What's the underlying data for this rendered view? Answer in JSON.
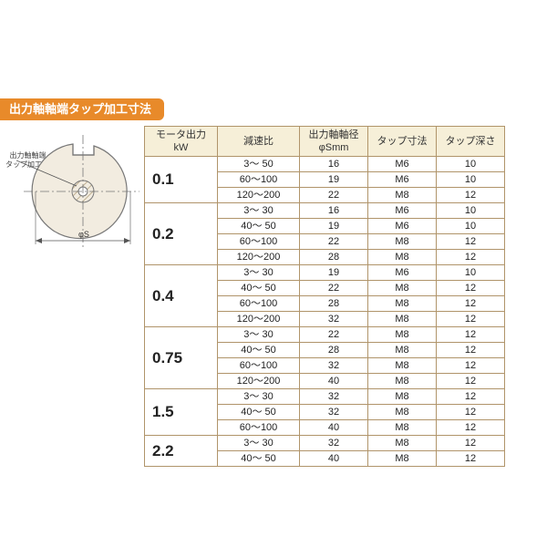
{
  "title": "出力軸軸端タップ加工寸法",
  "diagram": {
    "label_lines": [
      "出力軸軸端",
      "タップ加工"
    ],
    "phi_label": "φS",
    "stroke": "#777777",
    "fill": "#f2ece0",
    "hatch": "#bfaf90"
  },
  "table": {
    "border_color": "#b0946a",
    "header_bg": "#f6efd8",
    "headers": {
      "kw": [
        "モータ出力",
        "kW"
      ],
      "ratio": "減速比",
      "dia": [
        "出力軸軸径",
        "φSmm"
      ],
      "tap": "タップ寸法",
      "depth": "タップ深さ"
    },
    "groups": [
      {
        "kw": "0.1",
        "rows": [
          {
            "ratio": "3～ 50",
            "dia": "16",
            "tap": "M6",
            "depth": "10"
          },
          {
            "ratio": "60～100",
            "dia": "19",
            "tap": "M6",
            "depth": "10"
          },
          {
            "ratio": "120～200",
            "dia": "22",
            "tap": "M8",
            "depth": "12"
          }
        ]
      },
      {
        "kw": "0.2",
        "rows": [
          {
            "ratio": "3～ 30",
            "dia": "16",
            "tap": "M6",
            "depth": "10"
          },
          {
            "ratio": "40～ 50",
            "dia": "19",
            "tap": "M6",
            "depth": "10"
          },
          {
            "ratio": "60～100",
            "dia": "22",
            "tap": "M8",
            "depth": "12"
          },
          {
            "ratio": "120～200",
            "dia": "28",
            "tap": "M8",
            "depth": "12"
          }
        ]
      },
      {
        "kw": "0.4",
        "rows": [
          {
            "ratio": "3～ 30",
            "dia": "19",
            "tap": "M6",
            "depth": "10"
          },
          {
            "ratio": "40～ 50",
            "dia": "22",
            "tap": "M8",
            "depth": "12"
          },
          {
            "ratio": "60～100",
            "dia": "28",
            "tap": "M8",
            "depth": "12"
          },
          {
            "ratio": "120～200",
            "dia": "32",
            "tap": "M8",
            "depth": "12"
          }
        ]
      },
      {
        "kw": "0.75",
        "rows": [
          {
            "ratio": "3～ 30",
            "dia": "22",
            "tap": "M8",
            "depth": "12"
          },
          {
            "ratio": "40～ 50",
            "dia": "28",
            "tap": "M8",
            "depth": "12"
          },
          {
            "ratio": "60～100",
            "dia": "32",
            "tap": "M8",
            "depth": "12"
          },
          {
            "ratio": "120～200",
            "dia": "40",
            "tap": "M8",
            "depth": "12"
          }
        ]
      },
      {
        "kw": "1.5",
        "rows": [
          {
            "ratio": "3～ 30",
            "dia": "32",
            "tap": "M8",
            "depth": "12"
          },
          {
            "ratio": "40～ 50",
            "dia": "32",
            "tap": "M8",
            "depth": "12"
          },
          {
            "ratio": "60～100",
            "dia": "40",
            "tap": "M8",
            "depth": "12"
          }
        ]
      },
      {
        "kw": "2.2",
        "rows": [
          {
            "ratio": "3～ 30",
            "dia": "32",
            "tap": "M8",
            "depth": "12"
          },
          {
            "ratio": "40～ 50",
            "dia": "40",
            "tap": "M8",
            "depth": "12"
          }
        ]
      }
    ]
  }
}
